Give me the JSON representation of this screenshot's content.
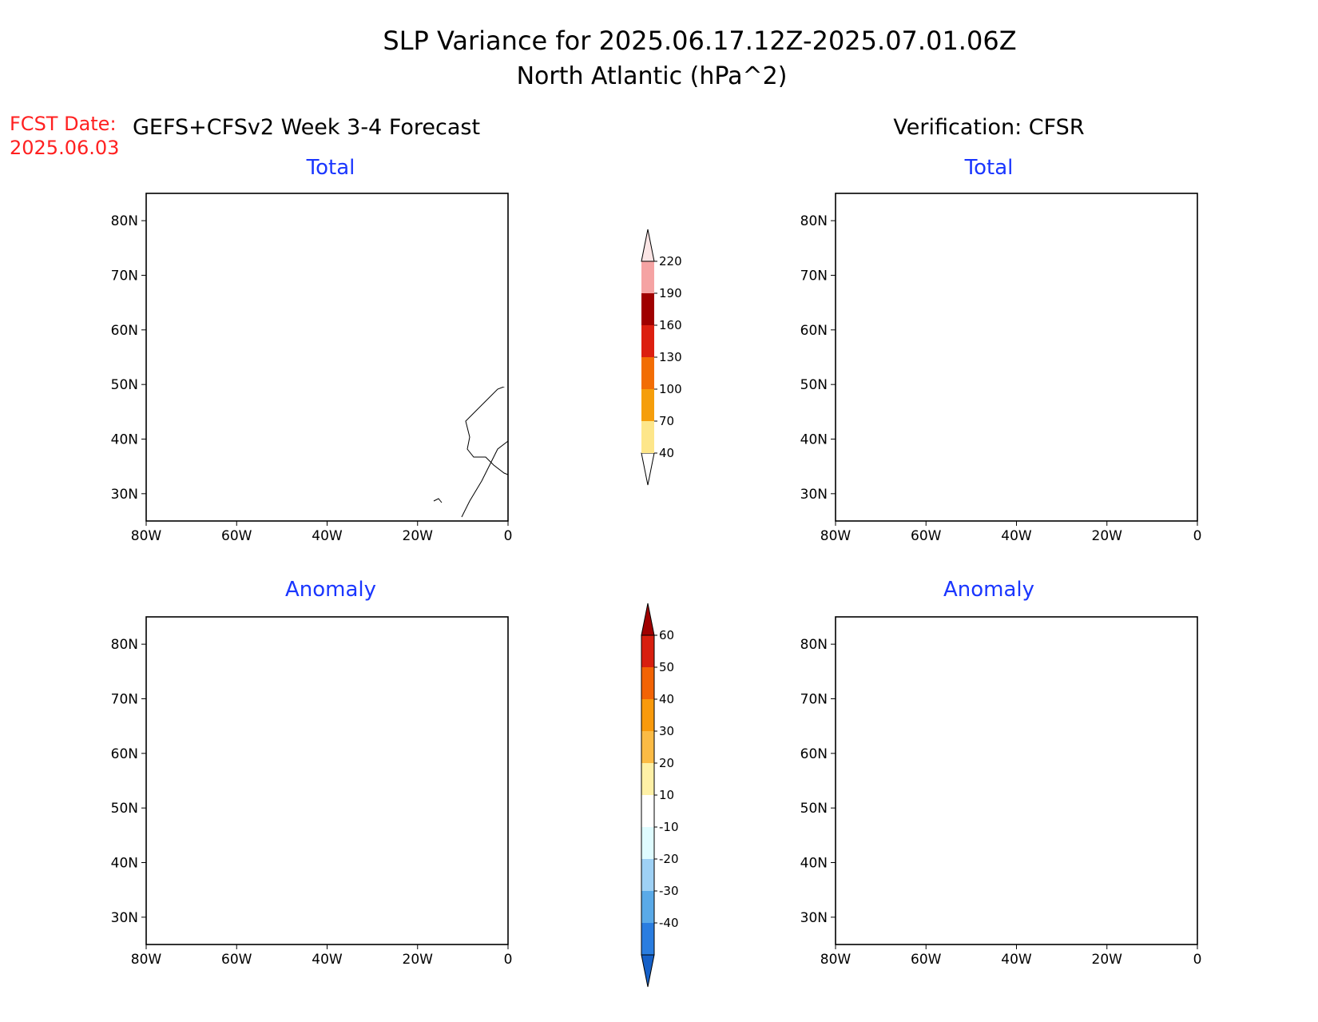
{
  "title": {
    "line1": "SLP Variance for 2025.06.17.12Z-2025.07.01.06Z",
    "line2": "North Atlantic (hPa^2)"
  },
  "fcst": {
    "label": "FCST Date:",
    "date": "2025.06.03"
  },
  "columns": {
    "left": "GEFS+CFSv2 Week 3-4 Forecast",
    "right": "Verification: CFSR"
  },
  "panels": {
    "forecast_total": {
      "title": "Total"
    },
    "verification_total": {
      "title": "Total"
    },
    "forecast_anomaly": {
      "title": "Anomaly"
    },
    "verification_anomaly": {
      "title": "Anomaly"
    }
  },
  "axes": {
    "lat_labels": [
      "80N",
      "70N",
      "60N",
      "50N",
      "40N",
      "30N"
    ],
    "lon_labels": [
      "80W",
      "60W",
      "40W",
      "20W",
      "0"
    ],
    "lat_values": [
      80,
      70,
      60,
      50,
      40,
      30
    ],
    "lon_values": [
      -80,
      -60,
      -40,
      -20,
      0
    ],
    "lat_range": [
      25,
      85
    ],
    "lon_range": [
      -80,
      0
    ]
  },
  "colorbar_total": {
    "labels": [
      "40",
      "70",
      "100",
      "130",
      "160",
      "190",
      "220"
    ],
    "colors": [
      "#fde68a",
      "#f59e0b",
      "#f26d04",
      "#dc1f10",
      "#a00000",
      "#f5a3a3",
      "#fbe5e5"
    ]
  },
  "colorbar_anomaly": {
    "labels": [
      "60",
      "50",
      "40",
      "30",
      "20",
      "10",
      "-10",
      "-20",
      "-30",
      "-40"
    ],
    "colors": [
      "#a00000",
      "#d81f0f",
      "#f26304",
      "#f89a0c",
      "#fbbb45",
      "#fef0a6",
      "#ffffff",
      "#dffcff",
      "#9ed1f5",
      "#5aaae8",
      "#2a7de0",
      "#1560c8"
    ]
  }
}
